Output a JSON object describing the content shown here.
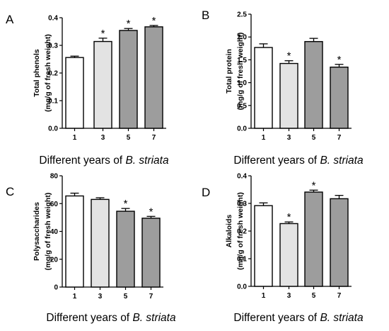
{
  "chart_data": [
    {
      "type": "bar",
      "panel": "A",
      "categories": [
        "1",
        "3",
        "5",
        "7"
      ],
      "values": [
        0.256,
        0.314,
        0.354,
        0.367
      ],
      "errors": [
        0.005,
        0.012,
        0.007,
        0.005
      ],
      "significant": [
        false,
        true,
        true,
        true
      ],
      "marker": "*",
      "ylabel_lines": [
        "Total phenols",
        "(mg/g of fresh weight)"
      ],
      "xlabel": "Different years of B. striata",
      "xlabel_plain": "Different years of ",
      "xlabel_italic": "B. striata",
      "ylim": [
        0,
        0.4
      ],
      "yticks": [
        0.0,
        0.1,
        0.2,
        0.3,
        0.4
      ],
      "ytick_labels": [
        "0.0",
        "0.1",
        "0.2",
        "0.3",
        "0.4"
      ],
      "bar_colors": [
        "#ffffff",
        "#e3e3e3",
        "#9d9d9d",
        "#9d9d9d"
      ]
    },
    {
      "type": "bar",
      "panel": "B",
      "categories": [
        "1",
        "3",
        "5",
        "7"
      ],
      "values": [
        1.77,
        1.42,
        1.9,
        1.34
      ],
      "errors": [
        0.08,
        0.06,
        0.07,
        0.06
      ],
      "significant": [
        false,
        true,
        false,
        true
      ],
      "marker": "*",
      "ylabel_lines": [
        "Total protein",
        "(mg/g of fresh weight)"
      ],
      "xlabel": "Different years of B. striata",
      "xlabel_plain": "Different years of ",
      "xlabel_italic": "B. striata",
      "ylim": [
        0,
        2.5
      ],
      "yticks": [
        0.0,
        0.5,
        1.0,
        1.5,
        2.0,
        2.5
      ],
      "ytick_labels": [
        "0.0",
        "0.5",
        "1.0",
        "1.5",
        "2.0",
        "2.5"
      ],
      "bar_colors": [
        "#ffffff",
        "#e3e3e3",
        "#9d9d9d",
        "#9d9d9d"
      ]
    },
    {
      "type": "bar",
      "panel": "C",
      "categories": [
        "1",
        "3",
        "5",
        "7"
      ],
      "values": [
        65.5,
        63.0,
        54.5,
        49.5
      ],
      "errors": [
        2.0,
        1.2,
        2.0,
        1.3
      ],
      "significant": [
        false,
        false,
        true,
        true
      ],
      "marker": "*",
      "ylabel_lines": [
        "Polysaccharides",
        "(mg/g of fresh weight)"
      ],
      "xlabel": "Different years of B. striata",
      "xlabel_plain": "Different years of ",
      "xlabel_italic": "B. striata",
      "ylim": [
        0,
        80
      ],
      "yticks": [
        0,
        20,
        40,
        60,
        80
      ],
      "ytick_labels": [
        "0",
        "20",
        "40",
        "60",
        "80"
      ],
      "bar_colors": [
        "#ffffff",
        "#e3e3e3",
        "#9d9d9d",
        "#9d9d9d"
      ]
    },
    {
      "type": "bar",
      "panel": "D",
      "categories": [
        "1",
        "3",
        "5",
        "7"
      ],
      "values": [
        0.292,
        0.227,
        0.341,
        0.317
      ],
      "errors": [
        0.01,
        0.006,
        0.007,
        0.012
      ],
      "significant": [
        false,
        true,
        true,
        false
      ],
      "marker": "*",
      "ylabel_lines": [
        "Alkaloids",
        "(mg/g of fresh weight)"
      ],
      "xlabel": "Different years of B. striata",
      "xlabel_plain": "Different years of ",
      "xlabel_italic": "B. striata",
      "ylim": [
        0,
        0.4
      ],
      "yticks": [
        0.0,
        0.1,
        0.2,
        0.3,
        0.4
      ],
      "ytick_labels": [
        "0.0",
        "0.1",
        "0.2",
        "0.3",
        "0.4"
      ],
      "bar_colors": [
        "#ffffff",
        "#e3e3e3",
        "#9d9d9d",
        "#9d9d9d"
      ]
    }
  ]
}
